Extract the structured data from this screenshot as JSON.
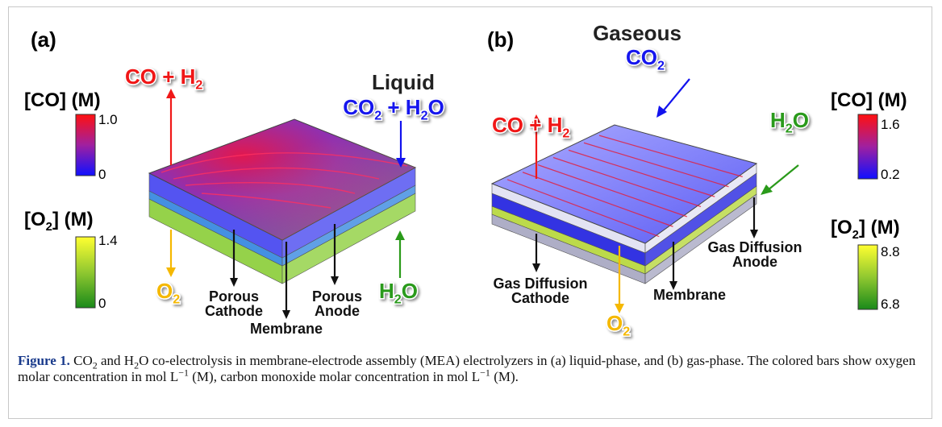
{
  "panels": [
    {
      "label": "(a)",
      "colorbars": [
        {
          "title": [
            "[CO] (M)"
          ],
          "ticks": [
            "1.0",
            "0"
          ]
        },
        {
          "title": [
            "[O",
            "2",
            "] (M)"
          ],
          "ticks": [
            "1.4",
            "0"
          ]
        }
      ],
      "annotations": [
        {
          "lines": [
            [
              "CO + H",
              "2"
            ]
          ]
        },
        {
          "lines": [
            [
              "Liquid"
            ],
            [
              "CO",
              "2",
              " + H",
              "2",
              "O"
            ]
          ]
        },
        {
          "lines": [
            [
              "O",
              "2"
            ]
          ]
        },
        {
          "lines": [
            [
              "H",
              "2",
              "O"
            ]
          ]
        },
        {
          "lines": [
            [
              "Porous"
            ],
            [
              "Cathode"
            ]
          ]
        },
        {
          "lines": [
            [
              "Membrane"
            ]
          ]
        },
        {
          "lines": [
            [
              "Porous"
            ],
            [
              "Anode"
            ]
          ]
        }
      ]
    },
    {
      "label": "(b)",
      "colorbars": [
        {
          "title": [
            "[CO] (M)"
          ],
          "ticks": [
            "1.6",
            "0.2"
          ]
        },
        {
          "title": [
            "[O",
            "2",
            "] (M)"
          ],
          "ticks": [
            "8.8",
            "6.8"
          ]
        }
      ],
      "annotations": [
        {
          "lines": [
            [
              "Gaseous"
            ],
            [
              "CO",
              "2"
            ]
          ]
        },
        {
          "lines": [
            [
              "CO + H",
              "2"
            ]
          ]
        },
        {
          "lines": [
            [
              "H",
              "2",
              "O"
            ]
          ]
        },
        {
          "lines": [
            [
              "Gas Diffusion"
            ],
            [
              "Anode"
            ]
          ]
        },
        {
          "lines": [
            [
              "Gas Diffusion"
            ],
            [
              "Cathode"
            ]
          ]
        },
        {
          "lines": [
            [
              "Membrane"
            ]
          ]
        },
        {
          "lines": [
            [
              "O",
              "2"
            ]
          ]
        }
      ]
    }
  ],
  "caption": {
    "parts": [
      {
        "text": "Figure 1.",
        "style": "bold"
      },
      {
        "text": " CO"
      },
      {
        "text": "2",
        "style": "sub"
      },
      {
        "text": " and H"
      },
      {
        "text": "2",
        "style": "sub"
      },
      {
        "text": "O co-electrolysis in membrane-electrode assembly (MEA) electrolyzers in (a) liquid-phase, and (b) gas-phase. The colored bars show oxygen molar concentration in mol L"
      },
      {
        "text": "−1",
        "style": "sup"
      },
      {
        "text": " (M), carbon monoxide molar concentration in mol L"
      },
      {
        "text": "−1",
        "style": "sup"
      },
      {
        "text": " (M)."
      }
    ]
  }
}
